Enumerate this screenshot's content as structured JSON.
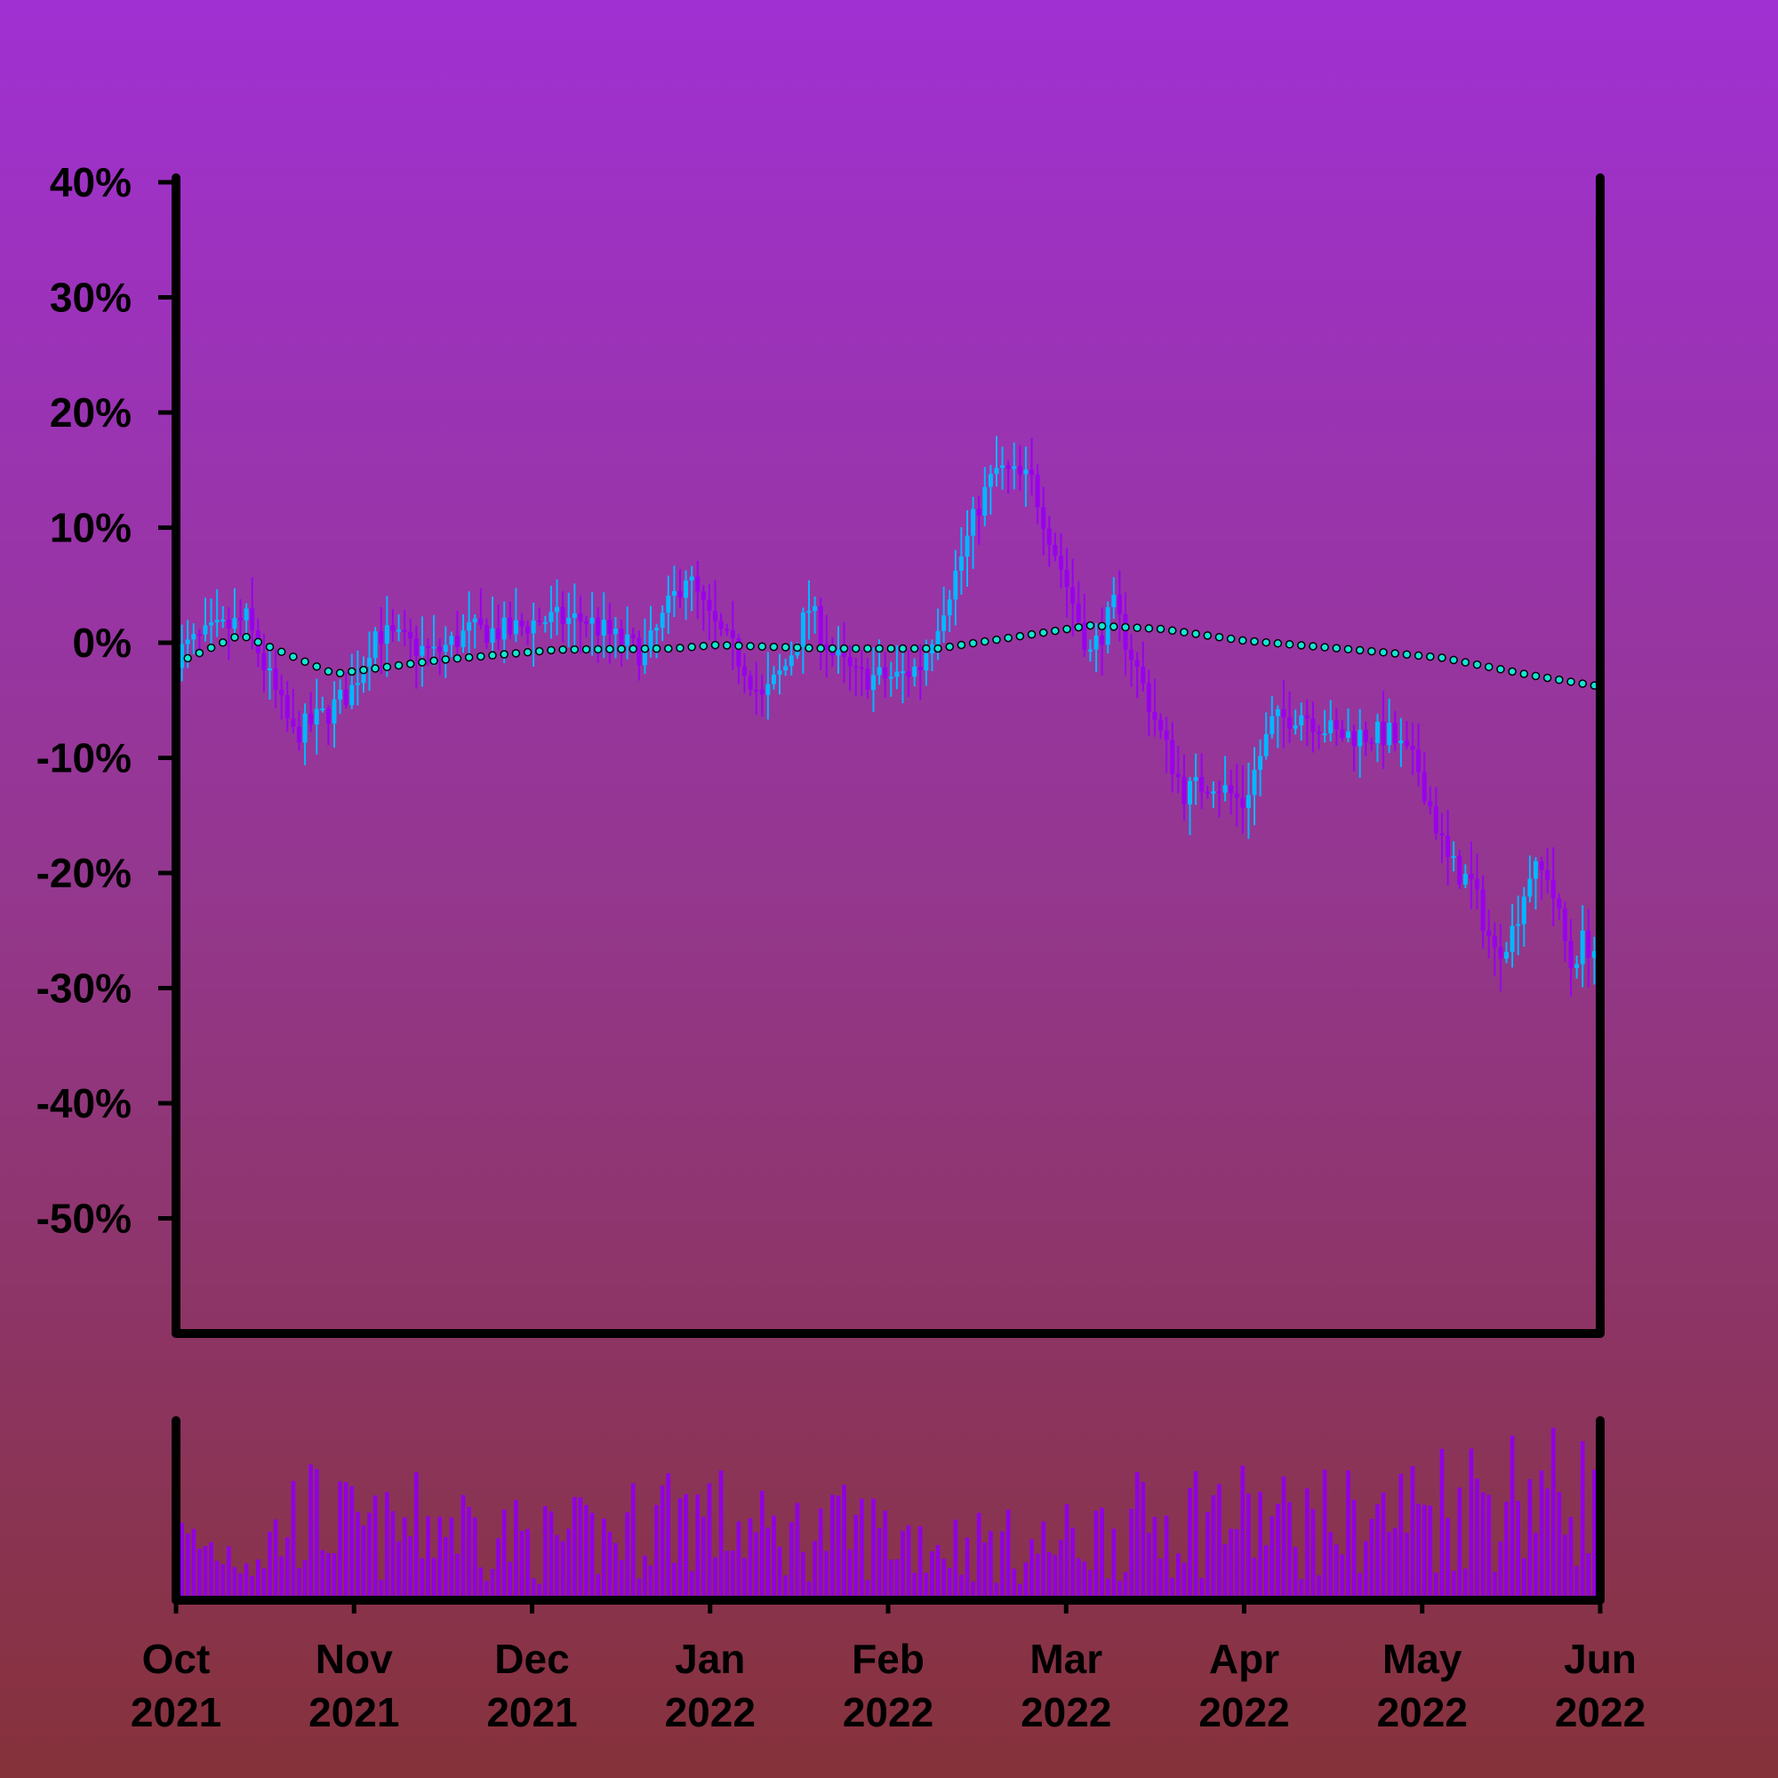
{
  "chart_data": {
    "type": "candlestick",
    "y_tick_labels": [
      "40%",
      "30%",
      "20%",
      "10%",
      "0%",
      "-10%",
      "-20%",
      "-30%",
      "-40%",
      "-50%"
    ],
    "ylim": [
      -60,
      40
    ],
    "x_tick_labels": [
      {
        "month": "Oct",
        "year": "2021"
      },
      {
        "month": "Nov",
        "year": "2021"
      },
      {
        "month": "Dec",
        "year": "2021"
      },
      {
        "month": "Jan",
        "year": "2022"
      },
      {
        "month": "Feb",
        "year": "2022"
      },
      {
        "month": "Mar",
        "year": "2022"
      },
      {
        "month": "Apr",
        "year": "2022"
      },
      {
        "month": "May",
        "year": "2022"
      },
      {
        "month": "Jun",
        "year": "2022"
      }
    ],
    "xlim": [
      "2021-10-01",
      "2022-06-01"
    ],
    "close_pct_anchors": [
      [
        "2021-10-01",
        -1
      ],
      [
        "2021-10-04",
        0
      ],
      [
        "2021-10-08",
        1
      ],
      [
        "2021-10-13",
        2
      ],
      [
        "2021-10-16",
        -2
      ],
      [
        "2021-10-21",
        -8
      ],
      [
        "2021-10-27",
        -6
      ],
      [
        "2021-10-31",
        -4
      ],
      [
        "2021-11-04",
        1
      ],
      [
        "2021-11-09",
        0
      ],
      [
        "2021-11-14",
        -1
      ],
      [
        "2021-11-20",
        1
      ],
      [
        "2021-11-27",
        1
      ],
      [
        "2021-12-02",
        2
      ],
      [
        "2021-12-10",
        2
      ],
      [
        "2021-12-16",
        0
      ],
      [
        "2021-12-20",
        -1
      ],
      [
        "2021-12-23",
        2
      ],
      [
        "2021-12-27",
        6
      ],
      [
        "2021-12-31",
        2
      ],
      [
        "2022-01-06",
        -2
      ],
      [
        "2022-01-09",
        -5
      ],
      [
        "2022-01-13",
        -2
      ],
      [
        "2022-01-17",
        3
      ],
      [
        "2022-01-21",
        -1
      ],
      [
        "2022-01-25",
        -3
      ],
      [
        "2022-02-01",
        -3
      ],
      [
        "2022-02-05",
        -2
      ],
      [
        "2022-02-11",
        6
      ],
      [
        "2022-02-15",
        12
      ],
      [
        "2022-02-18",
        15
      ],
      [
        "2022-02-24",
        14
      ],
      [
        "2022-03-02",
        5
      ],
      [
        "2022-03-06",
        -1
      ],
      [
        "2022-03-10",
        3
      ],
      [
        "2022-03-13",
        -1
      ],
      [
        "2022-03-18",
        -8
      ],
      [
        "2022-03-22",
        -13
      ],
      [
        "2022-03-27",
        -12
      ],
      [
        "2022-04-01",
        -14
      ],
      [
        "2022-04-06",
        -7
      ],
      [
        "2022-04-11",
        -6
      ],
      [
        "2022-04-17",
        -8
      ],
      [
        "2022-04-26",
        -8
      ],
      [
        "2022-05-01",
        -11
      ],
      [
        "2022-05-06",
        -19
      ],
      [
        "2022-05-10",
        -21
      ],
      [
        "2022-05-14",
        -27
      ],
      [
        "2022-05-17",
        -25
      ],
      [
        "2022-05-20",
        -20
      ],
      [
        "2022-05-23",
        -20
      ],
      [
        "2022-05-27",
        -28
      ],
      [
        "2022-05-29",
        -26
      ],
      [
        "2022-06-01",
        -27
      ]
    ],
    "moving_average_pct_anchors": [
      [
        "2021-10-01",
        -1.8
      ],
      [
        "2021-10-12",
        0.7
      ],
      [
        "2021-10-28",
        -2.7
      ],
      [
        "2021-11-15",
        -1.5
      ],
      [
        "2021-12-05",
        -0.6
      ],
      [
        "2021-12-25",
        -0.5
      ],
      [
        "2022-01-01",
        -0.2
      ],
      [
        "2022-01-20",
        -0.5
      ],
      [
        "2022-02-08",
        -0.5
      ],
      [
        "2022-02-25",
        0.8
      ],
      [
        "2022-03-06",
        1.5
      ],
      [
        "2022-03-18",
        1.2
      ],
      [
        "2022-04-01",
        0.2
      ],
      [
        "2022-04-20",
        -0.6
      ],
      [
        "2022-05-05",
        -1.3
      ],
      [
        "2022-05-20",
        -2.8
      ],
      [
        "2022-06-01",
        -3.8
      ]
    ],
    "volume_relative_anchors": [
      [
        "2021-10-01",
        0.45
      ],
      [
        "2021-10-15",
        0.35
      ],
      [
        "2021-10-22",
        0.7
      ],
      [
        "2021-11-05",
        0.5
      ],
      [
        "2021-11-15",
        0.65
      ],
      [
        "2021-12-01",
        0.45
      ],
      [
        "2021-12-15",
        0.5
      ],
      [
        "2021-12-25",
        0.75
      ],
      [
        "2022-01-10",
        0.5
      ],
      [
        "2022-01-25",
        0.55
      ],
      [
        "2022-02-10",
        0.45
      ],
      [
        "2022-02-25",
        0.4
      ],
      [
        "2022-03-10",
        0.55
      ],
      [
        "2022-03-25",
        0.7
      ],
      [
        "2022-04-10",
        0.6
      ],
      [
        "2022-04-25",
        0.65
      ],
      [
        "2022-05-05",
        0.8
      ],
      [
        "2022-05-20",
        0.9
      ],
      [
        "2022-06-01",
        0.85
      ]
    ],
    "colors": {
      "up": "#00b8ff",
      "down": "#9900ee",
      "volume": "#9100e3",
      "moving_average_marker": "#14e6d4",
      "axis": "#000000"
    },
    "grid": false,
    "legend": "none"
  }
}
